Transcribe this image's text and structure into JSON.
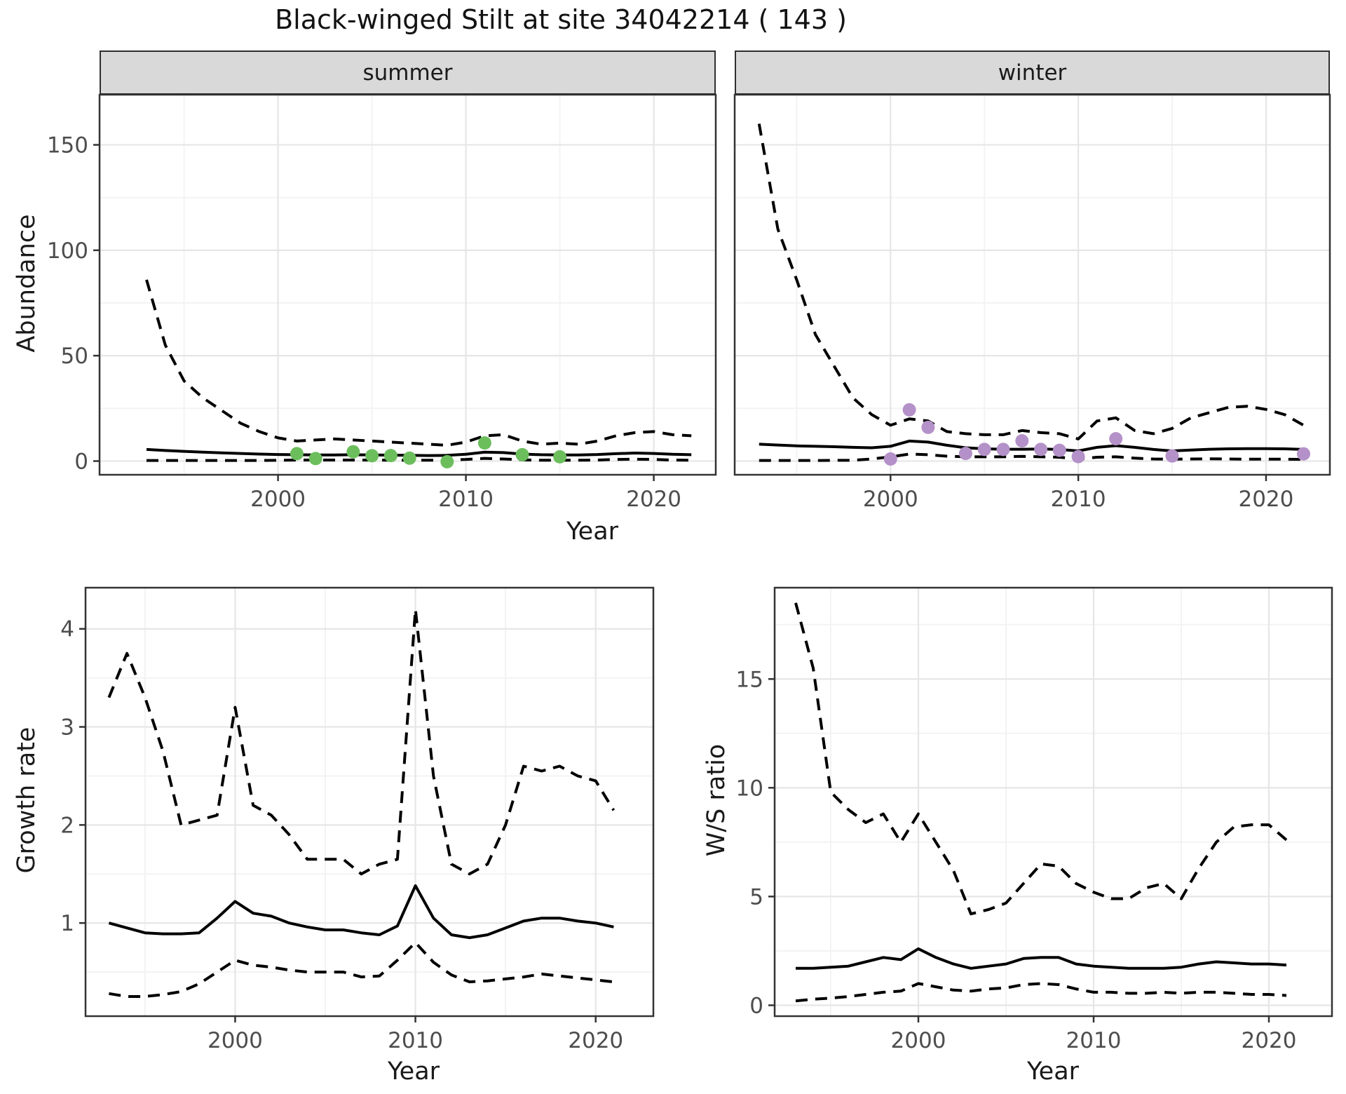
{
  "title": "Black-winged Stilt at site 34042214 ( 143 )",
  "colors": {
    "summer_point": "#6cbe5d",
    "winter_point": "#b491c8",
    "line": "#000000",
    "grid_major": "#e6e6e6",
    "grid_minor": "#f3f3f3",
    "panel_border": "#333333",
    "strip_bg": "#d9d9d9",
    "tick_text": "#4d4d4d",
    "axis_title_text": "#1a1a1a"
  },
  "axes": {
    "abundance_label": "Abundance",
    "growth_label": "Growth rate",
    "ratio_label": "W/S ratio",
    "year_label_top": "Year",
    "year_label_growth": "Year",
    "year_label_ratio": "Year"
  },
  "chart_data": [
    {
      "type": "line",
      "facet_label": "summer",
      "ylabel": "Abundance",
      "xlabel": "Year",
      "x_range": [
        1990.5,
        2023.3
      ],
      "y_range": [
        -6.5,
        173.8
      ],
      "x_ticks": [
        2000,
        2010,
        2020
      ],
      "x_tick_labels": [
        "2000",
        "2010",
        "2020"
      ],
      "x_minor": [
        1995,
        2005,
        2015
      ],
      "y_ticks": [
        0,
        50,
        100,
        150
      ],
      "y_tick_labels": [
        "0",
        "50",
        "100",
        "150"
      ],
      "y_minor": [
        25,
        75,
        125
      ],
      "years": [
        1993,
        1994,
        1995,
        1996,
        1997,
        1998,
        1999,
        2000,
        2001,
        2002,
        2003,
        2004,
        2005,
        2006,
        2007,
        2008,
        2009,
        2010,
        2011,
        2012,
        2013,
        2014,
        2015,
        2016,
        2017,
        2018,
        2019,
        2020,
        2021,
        2022
      ],
      "series": [
        {
          "name": "upper_ci",
          "style": "dashed",
          "values": [
            86,
            55,
            38,
            30,
            24,
            18,
            14,
            11,
            9.5,
            10,
            10.5,
            10,
            9.5,
            9,
            8.5,
            8,
            7.5,
            9,
            12,
            12.5,
            9.5,
            8,
            8.5,
            8,
            9.5,
            12,
            13.5,
            14,
            12.5,
            12
          ]
        },
        {
          "name": "fit",
          "style": "solid",
          "values": [
            5.5,
            5.0,
            4.6,
            4.2,
            3.9,
            3.6,
            3.3,
            3.1,
            3.0,
            2.9,
            2.9,
            3.0,
            2.9,
            2.8,
            2.7,
            2.6,
            2.7,
            3.2,
            4.2,
            4.0,
            3.3,
            3.0,
            2.9,
            2.9,
            3.1,
            3.5,
            3.8,
            3.6,
            3.2,
            3.0
          ]
        },
        {
          "name": "lower_ci",
          "style": "dashed",
          "values": [
            0.3,
            0.3,
            0.3,
            0.3,
            0.3,
            0.3,
            0.3,
            0.4,
            0.5,
            0.5,
            0.5,
            0.5,
            0.5,
            0.4,
            0.4,
            0.4,
            0.5,
            0.8,
            1.3,
            1.0,
            0.6,
            0.4,
            0.4,
            0.4,
            0.5,
            0.8,
            0.9,
            0.8,
            0.5,
            0.4
          ]
        }
      ],
      "points": {
        "color": "#6cbe5d",
        "data": [
          [
            2001,
            3.5
          ],
          [
            2002,
            1.2
          ],
          [
            2004,
            4.4
          ],
          [
            2005,
            2.5
          ],
          [
            2006,
            2.6
          ],
          [
            2007,
            1.4
          ],
          [
            2009,
            -0.3
          ],
          [
            2011,
            8.6
          ],
          [
            2013,
            3.0
          ],
          [
            2015,
            2.0
          ]
        ]
      }
    },
    {
      "type": "line",
      "facet_label": "winter",
      "ylabel": "Abundance",
      "xlabel": "Year",
      "x_range": [
        1991.7,
        2023.4
      ],
      "y_range": [
        -6.5,
        173.8
      ],
      "x_ticks": [
        2000,
        2010,
        2020
      ],
      "x_tick_labels": [
        "2000",
        "2010",
        "2020"
      ],
      "x_minor": [
        1995,
        2005,
        2015
      ],
      "y_ticks": [
        0,
        50,
        100,
        150
      ],
      "y_tick_labels": [
        "0",
        "50",
        "100",
        "150"
      ],
      "y_minor": [
        25,
        75,
        125
      ],
      "years": [
        1993,
        1994,
        1995,
        1996,
        1997,
        1998,
        1999,
        2000,
        2001,
        2002,
        2003,
        2004,
        2005,
        2006,
        2007,
        2008,
        2009,
        2010,
        2011,
        2012,
        2013,
        2014,
        2015,
        2016,
        2017,
        2018,
        2019,
        2020,
        2021,
        2022
      ],
      "series": [
        {
          "name": "upper_ci",
          "style": "dashed",
          "values": [
            160,
            110,
            86,
            60,
            45,
            30,
            22,
            17,
            20,
            19,
            14,
            13,
            12.5,
            12.5,
            14.5,
            13.5,
            13,
            10.5,
            19,
            20.5,
            14.5,
            13,
            15.5,
            20.5,
            23,
            25.5,
            26,
            24.5,
            22,
            17
          ]
        },
        {
          "name": "fit",
          "style": "solid",
          "values": [
            8,
            7.6,
            7.2,
            7,
            6.8,
            6.5,
            6.3,
            7,
            9.5,
            9,
            7.5,
            6.3,
            5.8,
            5.6,
            5.6,
            5.7,
            5.5,
            4.8,
            6.5,
            7.3,
            6.5,
            5.5,
            4.8,
            5.2,
            5.6,
            5.8,
            5.9,
            5.9,
            5.8,
            5.5
          ]
        },
        {
          "name": "lower_ci",
          "style": "dashed",
          "values": [
            0.3,
            0.3,
            0.3,
            0.3,
            0.35,
            0.4,
            1.0,
            2.0,
            3.3,
            3.0,
            2.3,
            2.0,
            2.0,
            2.0,
            2.2,
            2.0,
            1.8,
            1.0,
            1.8,
            2.0,
            1.4,
            1.0,
            0.9,
            1.0,
            1.1,
            1.0,
            0.9,
            0.9,
            0.9,
            0.8
          ]
        }
      ],
      "points": {
        "color": "#b491c8",
        "data": [
          [
            2000,
            1.0
          ],
          [
            2001,
            24.3
          ],
          [
            2002,
            16.0
          ],
          [
            2004,
            3.6
          ],
          [
            2005,
            5.5
          ],
          [
            2006,
            5.5
          ],
          [
            2007,
            9.6
          ],
          [
            2008,
            5.5
          ],
          [
            2009,
            5.1
          ],
          [
            2010,
            2.1
          ],
          [
            2012,
            10.6
          ],
          [
            2015,
            2.4
          ],
          [
            2022,
            3.4
          ]
        ]
      }
    },
    {
      "type": "line",
      "facet_label": null,
      "ylabel": "Growth rate",
      "xlabel": "Year",
      "x_range": [
        1991.7,
        2023.2
      ],
      "y_range": [
        0.05,
        4.42
      ],
      "x_ticks": [
        2000,
        2010,
        2020
      ],
      "x_tick_labels": [
        "2000",
        "2010",
        "2020"
      ],
      "x_minor": [
        1995,
        2005,
        2015
      ],
      "y_ticks": [
        1,
        2,
        3,
        4
      ],
      "y_tick_labels": [
        "1",
        "2",
        "3",
        "4"
      ],
      "y_minor": [
        0.5,
        1.5,
        2.5,
        3.5
      ],
      "years": [
        1993,
        1994,
        1995,
        1996,
        1997,
        1998,
        1999,
        2000,
        2001,
        2002,
        2003,
        2004,
        2005,
        2006,
        2007,
        2008,
        2009,
        2010,
        2011,
        2012,
        2013,
        2014,
        2015,
        2016,
        2017,
        2018,
        2019,
        2020,
        2021
      ],
      "series": [
        {
          "name": "upper_ci",
          "style": "dashed",
          "values": [
            3.3,
            3.75,
            3.3,
            2.75,
            2.0,
            2.05,
            2.1,
            3.2,
            2.2,
            2.1,
            1.9,
            1.65,
            1.65,
            1.65,
            1.5,
            1.6,
            1.65,
            4.2,
            2.5,
            1.6,
            1.5,
            1.6,
            2.0,
            2.6,
            2.55,
            2.6,
            2.5,
            2.45,
            2.15
          ]
        },
        {
          "name": "fit",
          "style": "solid",
          "values": [
            1.0,
            0.95,
            0.9,
            0.89,
            0.89,
            0.9,
            1.05,
            1.22,
            1.1,
            1.07,
            1.0,
            0.96,
            0.93,
            0.93,
            0.9,
            0.88,
            0.97,
            1.38,
            1.05,
            0.88,
            0.85,
            0.88,
            0.95,
            1.02,
            1.05,
            1.05,
            1.02,
            1.0,
            0.96
          ]
        },
        {
          "name": "lower_ci",
          "style": "dashed",
          "values": [
            0.28,
            0.25,
            0.25,
            0.27,
            0.3,
            0.38,
            0.5,
            0.62,
            0.57,
            0.55,
            0.52,
            0.5,
            0.5,
            0.5,
            0.45,
            0.46,
            0.62,
            0.8,
            0.6,
            0.47,
            0.4,
            0.41,
            0.43,
            0.45,
            0.48,
            0.46,
            0.44,
            0.42,
            0.4
          ]
        }
      ],
      "points": null
    },
    {
      "type": "line",
      "facet_label": null,
      "ylabel": "W/S ratio",
      "xlabel": "Year",
      "x_range": [
        1991.8,
        2023.6
      ],
      "y_range": [
        -0.5,
        19.2
      ],
      "x_ticks": [
        2000,
        2010,
        2020
      ],
      "x_tick_labels": [
        "2000",
        "2010",
        "2020"
      ],
      "x_minor": [
        1995,
        2005,
        2015
      ],
      "y_ticks": [
        0,
        5,
        10,
        15
      ],
      "y_tick_labels": [
        "0",
        "5",
        "10",
        "15"
      ],
      "y_minor": [
        2.5,
        7.5,
        12.5,
        17.5
      ],
      "years": [
        1993,
        1994,
        1995,
        1996,
        1997,
        1998,
        1999,
        2000,
        2001,
        2002,
        2003,
        2004,
        2005,
        2006,
        2007,
        2008,
        2009,
        2010,
        2011,
        2012,
        2013,
        2014,
        2015,
        2016,
        2017,
        2018,
        2019,
        2020,
        2021
      ],
      "series": [
        {
          "name": "upper_ci",
          "style": "dashed",
          "values": [
            18.5,
            15.5,
            9.8,
            9.0,
            8.4,
            8.8,
            7.5,
            8.8,
            7.5,
            6.2,
            4.2,
            4.4,
            4.7,
            5.6,
            6.5,
            6.4,
            5.6,
            5.2,
            4.9,
            4.9,
            5.4,
            5.6,
            4.9,
            6.3,
            7.5,
            8.2,
            8.3,
            8.3,
            7.6
          ]
        },
        {
          "name": "fit",
          "style": "solid",
          "values": [
            1.7,
            1.7,
            1.75,
            1.8,
            2.0,
            2.2,
            2.1,
            2.6,
            2.2,
            1.9,
            1.7,
            1.8,
            1.9,
            2.15,
            2.2,
            2.2,
            1.9,
            1.8,
            1.75,
            1.7,
            1.7,
            1.7,
            1.75,
            1.9,
            2.0,
            1.95,
            1.9,
            1.9,
            1.85
          ]
        },
        {
          "name": "lower_ci",
          "style": "dashed",
          "values": [
            0.2,
            0.28,
            0.33,
            0.4,
            0.5,
            0.6,
            0.65,
            1.0,
            0.85,
            0.7,
            0.65,
            0.75,
            0.8,
            0.95,
            1.0,
            0.95,
            0.75,
            0.6,
            0.6,
            0.55,
            0.55,
            0.6,
            0.55,
            0.6,
            0.6,
            0.55,
            0.5,
            0.5,
            0.45
          ]
        }
      ],
      "points": null
    }
  ]
}
